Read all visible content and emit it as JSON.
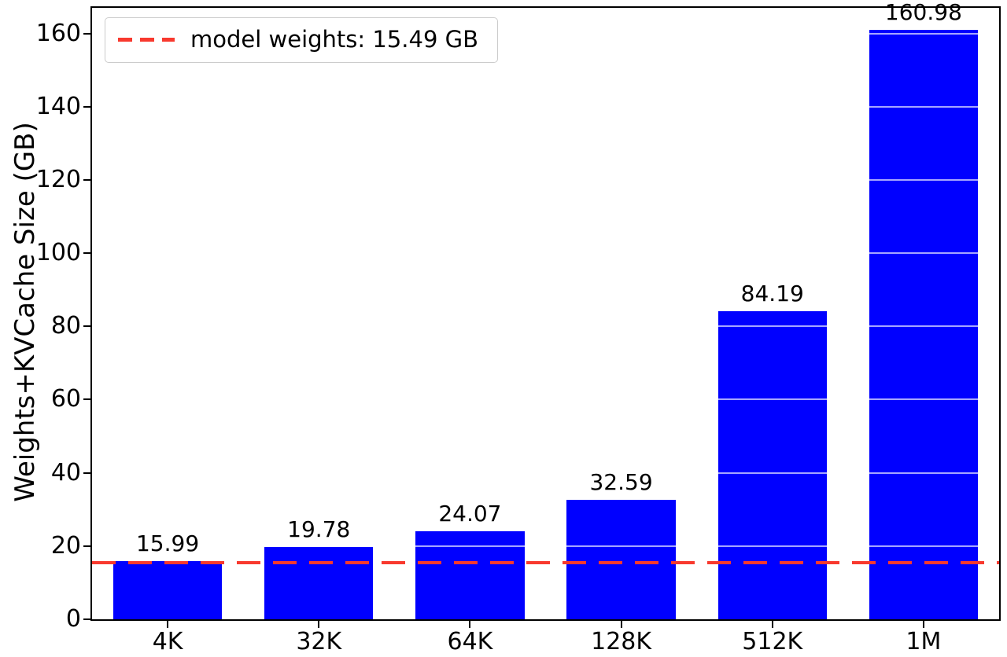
{
  "chart_data": {
    "type": "bar",
    "categories": [
      "4K",
      "32K",
      "64K",
      "128K",
      "512K",
      "1M"
    ],
    "values": [
      15.99,
      19.78,
      24.07,
      32.59,
      84.19,
      160.98
    ],
    "value_labels": [
      "15.99",
      "19.78",
      "24.07",
      "32.59",
      "84.19",
      "160.98"
    ],
    "title": "",
    "xlabel": "",
    "ylabel": "Weights+KVCache Size (GB)",
    "ylim": [
      0,
      167
    ],
    "yticks": [
      0,
      20,
      40,
      60,
      80,
      100,
      120,
      140,
      160
    ],
    "grid": true,
    "bar_color": "#0000ff",
    "threshold": {
      "value": 15.49,
      "label": "model weights: 15.49 GB",
      "color": "#f8392e",
      "style": "dashed"
    },
    "legend_position": "upper left"
  }
}
